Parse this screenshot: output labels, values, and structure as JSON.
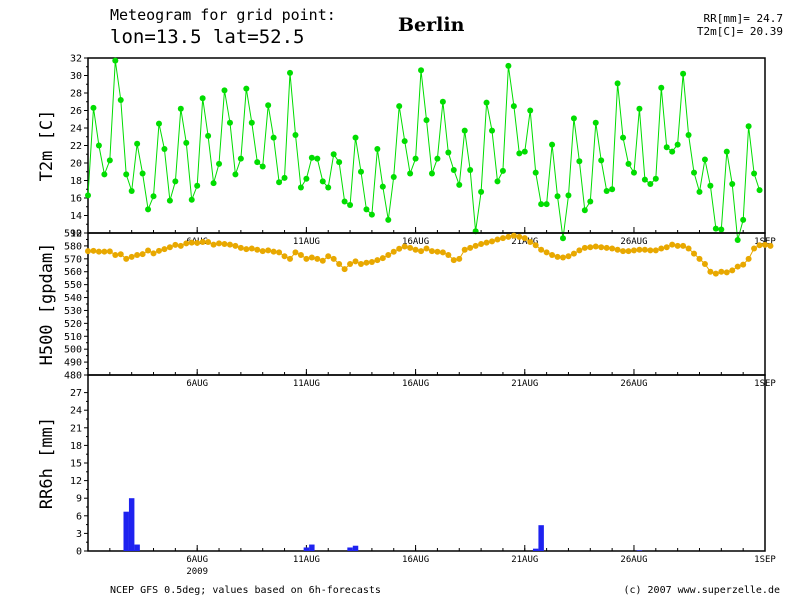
{
  "header": {
    "title_line1": "Meteogram for grid point:",
    "title_line2": "lon=13.5  lat=52.5",
    "city": "Berlin",
    "stat_rr": "RR[mm]= 24.7",
    "stat_t2m": "T2m[C]= 20.39"
  },
  "footer": {
    "left": "NCEP GFS 0.5deg; values based on 6h-forecasts",
    "right": "(c) 2007 www.superzelle.de"
  },
  "colors": {
    "t2m": "#00dd00",
    "h500": "#e8a800",
    "rr6h": "#1e22f0",
    "axis": "#000000"
  },
  "chart_data": [
    {
      "type": "line",
      "ylabel": "T2m [C]",
      "ylim": [
        12,
        32
      ],
      "yticks": [
        12,
        14,
        16,
        18,
        20,
        22,
        24,
        26,
        28,
        30,
        32
      ],
      "x_ticks": [
        {
          "label": "6AUG",
          "step": 20
        },
        {
          "label": "11AUG",
          "step": 40
        },
        {
          "label": "16AUG",
          "step": 60
        },
        {
          "label": "21AUG",
          "step": 80
        },
        {
          "label": "26AUG",
          "step": 100
        },
        {
          "label": "1SEP",
          "step": 124
        }
      ],
      "x_unit": "6h forecast step from 2009-08-01 00UTC",
      "series": [
        {
          "values": [
            16.3,
            26.3,
            22.0,
            18.7,
            20.3,
            31.7,
            27.2,
            18.7,
            16.8,
            22.2,
            18.8,
            14.7,
            16.2,
            24.5,
            21.6,
            15.7,
            17.9,
            26.2,
            22.3,
            15.8,
            17.4,
            27.4,
            23.1,
            17.7,
            19.9,
            28.3,
            24.6,
            18.7,
            20.5,
            28.5,
            24.6,
            20.1,
            19.6,
            26.6,
            22.9,
            17.8,
            18.3,
            30.3,
            23.2,
            17.2,
            18.2,
            20.6,
            20.5,
            17.9,
            17.2,
            21.0,
            20.1,
            15.6,
            15.2,
            22.9,
            19.0,
            14.7,
            14.1,
            21.6,
            17.3,
            13.5,
            18.4,
            26.5,
            22.5,
            18.8,
            20.5,
            30.6,
            24.9,
            18.8,
            20.5,
            27.0,
            21.2,
            19.2,
            17.5,
            23.7,
            19.2,
            12.2,
            16.7,
            26.9,
            23.7,
            17.9,
            19.1,
            31.1,
            26.5,
            21.1,
            21.3,
            26.0,
            18.9,
            15.3,
            15.3,
            22.1,
            16.2,
            11.4,
            16.3,
            25.1,
            20.2,
            14.6,
            15.6,
            24.6,
            20.3,
            16.8,
            17.0,
            29.1,
            22.9,
            19.9,
            18.9,
            26.2,
            18.1,
            17.6,
            18.2,
            28.6,
            21.8,
            21.3,
            22.1,
            30.2,
            23.2,
            18.9,
            16.7,
            20.4,
            17.4,
            12.5,
            12.4,
            21.3,
            17.6,
            11.2,
            13.5,
            24.2,
            18.8,
            16.9
          ]
        }
      ]
    },
    {
      "type": "line",
      "ylabel": "H500 [gpdam]",
      "ylim": [
        480,
        590
      ],
      "yticks": [
        480,
        490,
        500,
        510,
        520,
        530,
        540,
        550,
        560,
        570,
        580,
        590
      ],
      "series": [
        {
          "values": [
            576,
            576.2,
            575.6,
            575.6,
            575.8,
            573,
            573.5,
            570,
            571.5,
            573,
            573.6,
            576.4,
            574.2,
            576.2,
            577.5,
            579,
            580.8,
            580,
            582,
            582.5,
            582.3,
            583,
            583,
            581,
            582,
            581.5,
            581,
            580,
            578.5,
            577.5,
            578,
            577,
            576,
            576.5,
            575.6,
            575,
            572,
            570,
            575,
            573,
            570,
            571,
            570,
            568.5,
            572,
            570,
            566,
            562,
            566,
            568,
            566,
            567,
            567.5,
            569,
            570.5,
            573,
            575.5,
            577.8,
            579.5,
            578.5,
            577,
            576,
            578,
            576,
            575.5,
            575,
            573,
            569,
            570,
            577,
            578.5,
            580,
            581.5,
            582.5,
            583.5,
            585,
            586,
            587,
            588,
            587,
            586,
            583,
            580.5,
            577,
            575,
            573,
            571.5,
            571,
            572,
            574,
            576.5,
            578.5,
            579,
            579.5,
            579,
            578.5,
            578,
            577,
            576,
            576,
            576.5,
            577,
            577,
            576.5,
            576.5,
            578,
            579,
            581,
            580,
            580,
            578,
            574,
            570,
            566,
            560,
            558.5,
            560,
            559.5,
            561,
            564,
            565.5,
            570,
            578,
            580.5,
            580.8,
            580
          ]
        }
      ]
    },
    {
      "type": "bar",
      "ylabel": "RR6h [mm]",
      "ylim": [
        0,
        30
      ],
      "yticks": [
        0,
        3,
        6,
        9,
        12,
        15,
        18,
        21,
        24,
        27
      ],
      "x_tick_sublabel": "2009",
      "series": [
        {
          "steps": [
            7,
            8,
            9,
            40,
            41,
            48,
            49,
            82,
            83,
            101
          ],
          "values": [
            6.7,
            9.0,
            1.1,
            0.6,
            1.1,
            0.6,
            0.9,
            0.4,
            4.4,
            0.1
          ]
        }
      ]
    }
  ]
}
